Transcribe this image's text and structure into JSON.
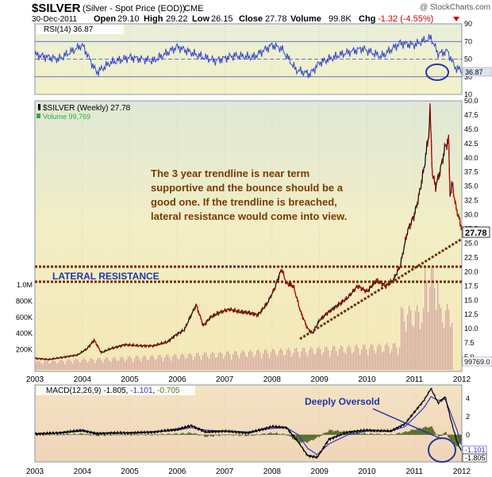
{
  "header": {
    "symbol": "$SILVER",
    "description": "(Silver - Spot Price (EOD))",
    "exchange": "CME",
    "watermark": "@ StockCharts.com",
    "date": "30-Dec-2011",
    "open_label": "Open",
    "open": "29.10",
    "high_label": "High",
    "high": "29.22",
    "low_label": "Low",
    "low": "26.15",
    "close_label": "Close",
    "close": "27.78",
    "volume_label": "Volume",
    "volume": "99.8K",
    "chg_label": "Chg",
    "chg": "-1.32 (-4.55%)"
  },
  "colors": {
    "price_line": "#000000",
    "down_bar": "#cc0000",
    "rsi_line": "#3344cc",
    "macd_line": "#000000",
    "signal_line": "#3333cc",
    "histogram": "#5a6e2a",
    "volume_bar": "#d0a0a0",
    "annotation_text": "#7a3a00",
    "resistance_line": "#6b2e00",
    "oversold_text": "#2233aa",
    "circle": "#2233aa"
  },
  "chart_data": [
    {
      "type": "line",
      "panel": "rsi",
      "title": "RSI(14) 36.87",
      "current_value": "36.87",
      "ylim": [
        10,
        90
      ],
      "yticks": [
        "90",
        "70",
        "50",
        "30",
        "10"
      ],
      "levels": [
        70,
        30
      ],
      "x": [
        2003.0,
        2003.5,
        2004.0,
        2004.3,
        2004.6,
        2005.0,
        2005.5,
        2006.0,
        2006.4,
        2006.8,
        2007.2,
        2007.6,
        2008.0,
        2008.2,
        2008.5,
        2008.8,
        2009.0,
        2009.5,
        2009.9,
        2010.3,
        2010.7,
        2011.0,
        2011.2,
        2011.35,
        2011.5,
        2011.7,
        2011.85,
        2011.99
      ],
      "y": [
        55,
        50,
        66,
        35,
        46,
        52,
        48,
        64,
        55,
        48,
        54,
        52,
        66,
        62,
        38,
        33,
        46,
        56,
        62,
        53,
        68,
        66,
        71,
        74,
        56,
        59,
        41,
        37
      ]
    },
    {
      "type": "line",
      "panel": "price",
      "title": "$SILVER (Weekly) 27.78",
      "volume_label": "Volume 99,769",
      "current_value": "27.78",
      "ylim": [
        2.5,
        50
      ],
      "yticks": [
        "50.0",
        "47.5",
        "45.0",
        "42.5",
        "40.0",
        "37.5",
        "35.0",
        "32.5",
        "30.0",
        "27.5",
        "25.0",
        "22.5",
        "20.0",
        "17.5",
        "15.0",
        "12.5",
        "10.0",
        "7.5",
        "5.0"
      ],
      "volume_ticks": [
        "1.0M",
        "800K",
        "600K",
        "400K",
        "200K"
      ],
      "volume_current": "99769.0",
      "x": [
        2003.0,
        2003.3,
        2003.6,
        2003.9,
        2004.1,
        2004.25,
        2004.4,
        2004.6,
        2004.9,
        2005.2,
        2005.5,
        2005.8,
        2005.95,
        2006.15,
        2006.3,
        2006.4,
        2006.55,
        2006.7,
        2006.9,
        2007.1,
        2007.3,
        2007.5,
        2007.7,
        2007.9,
        2008.05,
        2008.2,
        2008.3,
        2008.45,
        2008.6,
        2008.75,
        2008.85,
        2009.0,
        2009.2,
        2009.4,
        2009.6,
        2009.8,
        2010.0,
        2010.2,
        2010.4,
        2010.55,
        2010.7,
        2010.85,
        2011.0,
        2011.1,
        2011.2,
        2011.3,
        2011.33,
        2011.38,
        2011.45,
        2011.55,
        2011.65,
        2011.72,
        2011.75,
        2011.8,
        2011.87,
        2011.92,
        2011.99
      ],
      "y": [
        4.8,
        4.6,
        5.0,
        5.4,
        6.5,
        8.0,
        5.8,
        6.5,
        7.2,
        7.0,
        7.0,
        7.7,
        8.8,
        9.8,
        12.5,
        14.2,
        10.5,
        12.0,
        12.9,
        13.4,
        13.0,
        12.8,
        12.4,
        14.5,
        17.0,
        20.5,
        18.0,
        17.5,
        13.0,
        10.0,
        9.2,
        11.5,
        13.0,
        14.2,
        15.5,
        17.5,
        16.5,
        18.5,
        17.5,
        18.5,
        21.0,
        27.0,
        30.0,
        33.5,
        38.0,
        44.0,
        48.5,
        37.0,
        35.0,
        38.0,
        42.0,
        43.0,
        33.5,
        35.5,
        31.5,
        30.0,
        27.78
      ]
    },
    {
      "type": "line",
      "panel": "macd",
      "title": "MACD(12,26,9) -1.805, -1.101, -0.705",
      "macd_value": "-1.805",
      "signal_value": "-1.101",
      "hist_value": "-0.705",
      "ylim": [
        -3,
        5.5
      ],
      "yticks": [
        "4",
        "2",
        "0"
      ],
      "x": [
        2003.0,
        2003.5,
        2004.0,
        2004.3,
        2004.6,
        2005.0,
        2005.5,
        2006.0,
        2006.3,
        2006.6,
        2007.0,
        2007.5,
        2008.0,
        2008.3,
        2008.55,
        2008.75,
        2008.95,
        2009.2,
        2009.6,
        2010.0,
        2010.5,
        2010.8,
        2011.0,
        2011.2,
        2011.35,
        2011.5,
        2011.65,
        2011.75,
        2011.9,
        2011.99
      ],
      "macd": [
        0.1,
        0.2,
        0.5,
        0.1,
        0.2,
        0.2,
        0.3,
        0.6,
        1.0,
        0.3,
        0.4,
        0.2,
        0.9,
        0.8,
        -0.8,
        -2.3,
        -2.5,
        -0.5,
        0.3,
        0.5,
        0.4,
        1.2,
        2.5,
        3.8,
        5.1,
        3.5,
        4.2,
        2.0,
        -0.8,
        -1.805
      ],
      "signal": [
        0.1,
        0.2,
        0.4,
        0.2,
        0.2,
        0.2,
        0.3,
        0.5,
        0.8,
        0.5,
        0.4,
        0.3,
        0.7,
        0.8,
        0.0,
        -1.5,
        -2.2,
        -1.0,
        0.0,
        0.4,
        0.4,
        0.9,
        1.9,
        3.0,
        4.2,
        3.8,
        3.9,
        2.6,
        0.5,
        -1.101
      ]
    }
  ],
  "x_axis": {
    "years": [
      "2003",
      "2004",
      "2005",
      "2006",
      "2007",
      "2008",
      "2009",
      "2010",
      "2011",
      "2012"
    ]
  },
  "annotations": {
    "note_lines": [
      "The 3 year trendline is near term",
      "supportive and the bounce should be a",
      "good one.  If the trendline is breached,",
      "lateral resistance would come into view."
    ],
    "lateral_resistance": "LATERAL RESISTANCE",
    "deeply_oversold": "Deeply Oversold"
  }
}
